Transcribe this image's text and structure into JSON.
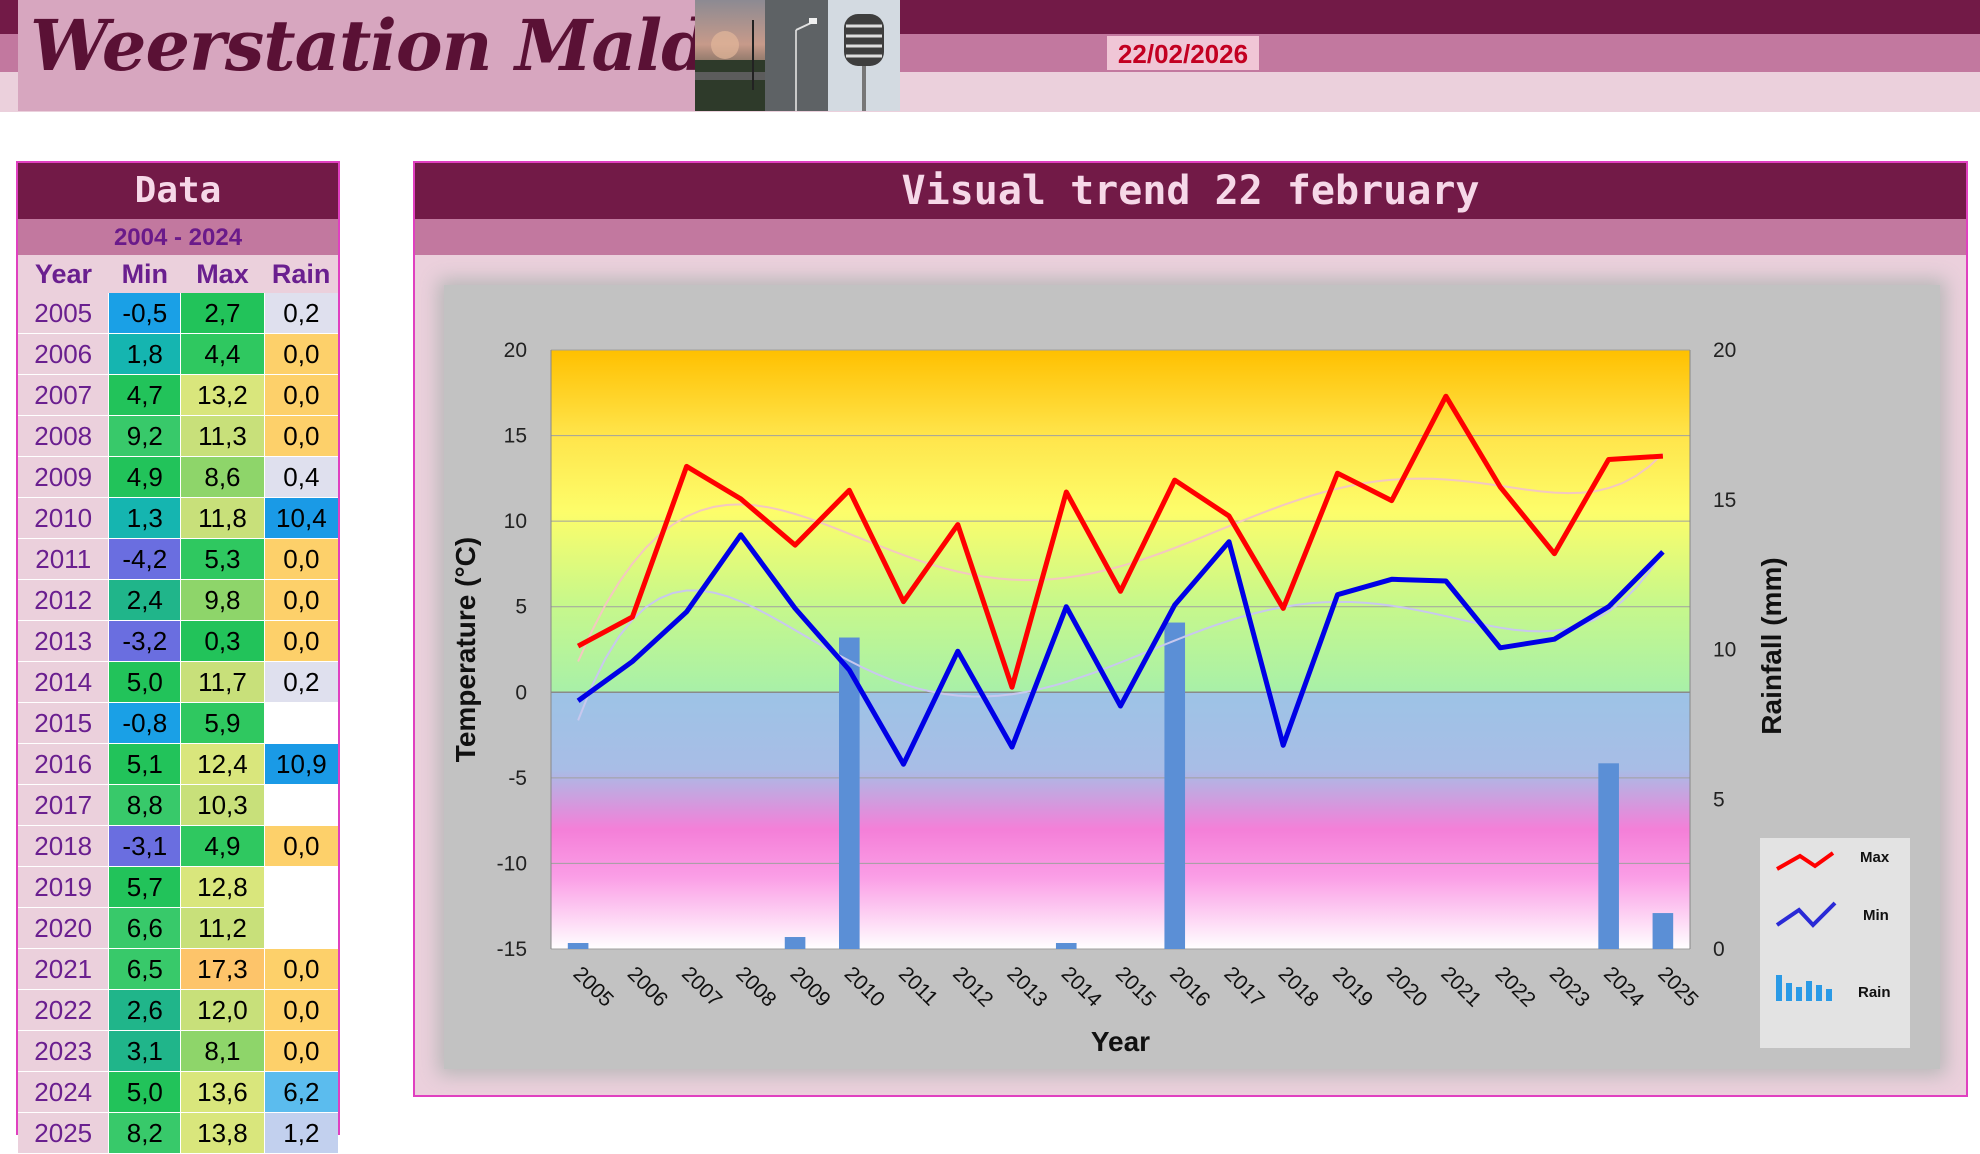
{
  "header": {
    "site_title": "Weerstation Malderen",
    "date": "22/02/2026"
  },
  "data_table": {
    "title": "Data",
    "range": "2004 - 2024",
    "columns": [
      "Year",
      "Min",
      "Max",
      "Rain"
    ],
    "rows": [
      {
        "year": "2005",
        "min": "-0,5",
        "max": "2,7",
        "rain": "0,2"
      },
      {
        "year": "2006",
        "min": "1,8",
        "max": "4,4",
        "rain": "0,0"
      },
      {
        "year": "2007",
        "min": "4,7",
        "max": "13,2",
        "rain": "0,0"
      },
      {
        "year": "2008",
        "min": "9,2",
        "max": "11,3",
        "rain": "0,0"
      },
      {
        "year": "2009",
        "min": "4,9",
        "max": "8,6",
        "rain": "0,4"
      },
      {
        "year": "2010",
        "min": "1,3",
        "max": "11,8",
        "rain": "10,4"
      },
      {
        "year": "2011",
        "min": "-4,2",
        "max": "5,3",
        "rain": "0,0"
      },
      {
        "year": "2012",
        "min": "2,4",
        "max": "9,8",
        "rain": "0,0"
      },
      {
        "year": "2013",
        "min": "-3,2",
        "max": "0,3",
        "rain": "0,0"
      },
      {
        "year": "2014",
        "min": "5,0",
        "max": "11,7",
        "rain": "0,2"
      },
      {
        "year": "2015",
        "min": "-0,8",
        "max": "5,9",
        "rain": ""
      },
      {
        "year": "2016",
        "min": "5,1",
        "max": "12,4",
        "rain": "10,9"
      },
      {
        "year": "2017",
        "min": "8,8",
        "max": "10,3",
        "rain": ""
      },
      {
        "year": "2018",
        "min": "-3,1",
        "max": "4,9",
        "rain": "0,0"
      },
      {
        "year": "2019",
        "min": "5,7",
        "max": "12,8",
        "rain": ""
      },
      {
        "year": "2020",
        "min": "6,6",
        "max": "11,2",
        "rain": ""
      },
      {
        "year": "2021",
        "min": "6,5",
        "max": "17,3",
        "rain": "0,0"
      },
      {
        "year": "2022",
        "min": "2,6",
        "max": "12,0",
        "rain": "0,0"
      },
      {
        "year": "2023",
        "min": "3,1",
        "max": "8,1",
        "rain": "0,0"
      },
      {
        "year": "2024",
        "min": "5,0",
        "max": "13,6",
        "rain": "6,2"
      },
      {
        "year": "2025",
        "min": "8,2",
        "max": "13,8",
        "rain": "1,2"
      }
    ]
  },
  "chart_panel": {
    "title": "Visual trend 22 february"
  },
  "chart_data": {
    "type": "line",
    "x": [
      "2005",
      "2006",
      "2007",
      "2008",
      "2009",
      "2010",
      "2011",
      "2012",
      "2013",
      "2014",
      "2015",
      "2016",
      "2017",
      "2018",
      "2019",
      "2020",
      "2021",
      "2022",
      "2023",
      "2024",
      "2025"
    ],
    "series": [
      {
        "name": "Max",
        "kind": "line",
        "axis": "left",
        "color": "#ff0000",
        "values": [
          2.7,
          4.4,
          13.2,
          11.3,
          8.6,
          11.8,
          5.3,
          9.8,
          0.3,
          11.7,
          5.9,
          12.4,
          10.3,
          4.9,
          12.8,
          11.2,
          17.3,
          12.0,
          8.1,
          13.6,
          13.8
        ]
      },
      {
        "name": "Min",
        "kind": "line",
        "axis": "left",
        "color": "#0000e6",
        "values": [
          -0.5,
          1.8,
          4.7,
          9.2,
          4.9,
          1.3,
          -4.2,
          2.4,
          -3.2,
          5.0,
          -0.8,
          5.1,
          8.8,
          -3.1,
          5.7,
          6.6,
          6.5,
          2.6,
          3.1,
          5.0,
          8.2
        ]
      },
      {
        "name": "Rain",
        "kind": "bar",
        "axis": "right",
        "color": "#5b8fd6",
        "values": [
          0.2,
          0,
          0,
          0,
          0.4,
          10.4,
          0,
          0,
          0,
          0.2,
          0,
          10.9,
          0,
          0,
          0,
          0,
          0,
          0,
          0,
          6.2,
          1.2
        ]
      }
    ],
    "xlabel": "Year",
    "ylabel": "Temperature (°C)",
    "y2label": "Rainfall (mm)",
    "ylim": [
      -15,
      20
    ],
    "y2lim": [
      0,
      20
    ],
    "yticks": [
      "20",
      "15",
      "10",
      "5",
      "0",
      "-5",
      "-10",
      "-15"
    ],
    "y2ticks": [
      "20",
      "15",
      "10",
      "5",
      "0"
    ],
    "grid": true,
    "trendlines": true,
    "legend": {
      "position": "right",
      "entries": [
        "Max",
        "Min",
        "Rain"
      ]
    }
  }
}
